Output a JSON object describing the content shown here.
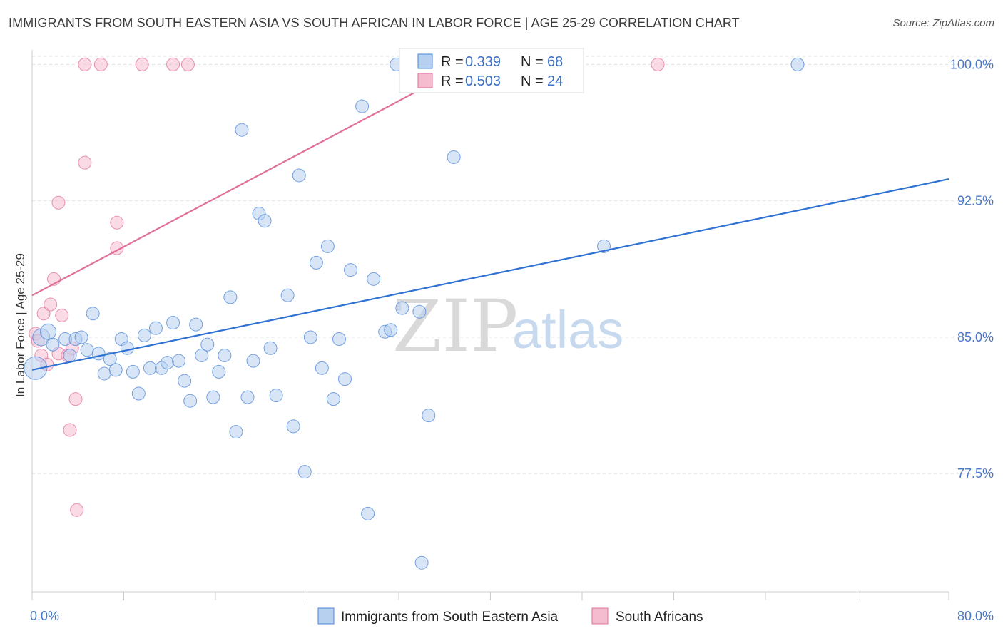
{
  "title": "IMMIGRANTS FROM SOUTH EASTERN ASIA VS SOUTH AFRICAN IN LABOR FORCE | AGE 25-29 CORRELATION CHART",
  "source": "Source: ZipAtlas.com",
  "watermark": {
    "zip": "ZIP",
    "atlas": "atlas"
  },
  "colors": {
    "blue": "#4a86d8",
    "blue_fill": "#b8d0f0",
    "pink": "#e0709a",
    "pink_fill": "#f5bcd0",
    "axis_text": "#4a78c8",
    "grid": "#e2e2e2"
  },
  "chart_data": {
    "type": "scatter",
    "xlabel": "",
    "ylabel": "In Labor Force | Age 25-29",
    "xlim": [
      0,
      80
    ],
    "ylim": [
      71,
      100.8
    ],
    "x_tick_labels": [
      "0.0%",
      "80.0%"
    ],
    "y_ticks": [
      77.5,
      85.0,
      92.5,
      100.0
    ],
    "y_tick_labels": [
      "77.5%",
      "85.0%",
      "92.5%",
      "100.0%"
    ],
    "grid": true,
    "legend_position": "top-center",
    "series": [
      {
        "name": "Immigrants from South Eastern Asia",
        "r_label": "R =",
        "r": "0.339",
        "n_label": "N =",
        "n": "68",
        "trend": {
          "x": [
            0,
            80
          ],
          "y": [
            83.2,
            93.7
          ]
        },
        "points": [
          {
            "x": 0.3,
            "y": 83.3,
            "s": 16
          },
          {
            "x": 0.8,
            "y": 85.0,
            "s": 12
          },
          {
            "x": 1.4,
            "y": 85.3,
            "s": 11
          },
          {
            "x": 1.8,
            "y": 84.6,
            "s": 9
          },
          {
            "x": 2.9,
            "y": 84.9,
            "s": 9
          },
          {
            "x": 3.3,
            "y": 84.0,
            "s": 9
          },
          {
            "x": 3.8,
            "y": 84.9,
            "s": 9
          },
          {
            "x": 4.3,
            "y": 85.0,
            "s": 9
          },
          {
            "x": 4.8,
            "y": 84.3,
            "s": 9
          },
          {
            "x": 5.3,
            "y": 86.3,
            "s": 9
          },
          {
            "x": 5.8,
            "y": 84.1,
            "s": 9
          },
          {
            "x": 6.3,
            "y": 83.0,
            "s": 9
          },
          {
            "x": 6.8,
            "y": 83.8,
            "s": 9
          },
          {
            "x": 7.3,
            "y": 83.2,
            "s": 9
          },
          {
            "x": 7.8,
            "y": 84.9,
            "s": 9
          },
          {
            "x": 8.3,
            "y": 84.4,
            "s": 9
          },
          {
            "x": 8.8,
            "y": 83.1,
            "s": 9
          },
          {
            "x": 9.3,
            "y": 81.9,
            "s": 9
          },
          {
            "x": 9.8,
            "y": 85.1,
            "s": 9
          },
          {
            "x": 10.3,
            "y": 83.3,
            "s": 9
          },
          {
            "x": 10.8,
            "y": 85.5,
            "s": 9
          },
          {
            "x": 11.3,
            "y": 83.3,
            "s": 9
          },
          {
            "x": 11.8,
            "y": 83.6,
            "s": 9
          },
          {
            "x": 12.3,
            "y": 85.8,
            "s": 9
          },
          {
            "x": 12.8,
            "y": 83.7,
            "s": 9
          },
          {
            "x": 13.3,
            "y": 82.6,
            "s": 9
          },
          {
            "x": 13.8,
            "y": 81.5,
            "s": 9
          },
          {
            "x": 14.3,
            "y": 85.7,
            "s": 9
          },
          {
            "x": 14.8,
            "y": 84.0,
            "s": 9
          },
          {
            "x": 15.3,
            "y": 84.6,
            "s": 9
          },
          {
            "x": 15.8,
            "y": 81.7,
            "s": 9
          },
          {
            "x": 16.3,
            "y": 83.1,
            "s": 9
          },
          {
            "x": 16.8,
            "y": 84.0,
            "s": 9
          },
          {
            "x": 17.3,
            "y": 87.2,
            "s": 9
          },
          {
            "x": 17.8,
            "y": 79.8,
            "s": 9
          },
          {
            "x": 18.3,
            "y": 96.4,
            "s": 9
          },
          {
            "x": 18.8,
            "y": 81.7,
            "s": 9
          },
          {
            "x": 19.3,
            "y": 83.7,
            "s": 9
          },
          {
            "x": 19.8,
            "y": 91.8,
            "s": 9
          },
          {
            "x": 20.3,
            "y": 91.4,
            "s": 9
          },
          {
            "x": 20.8,
            "y": 84.4,
            "s": 9
          },
          {
            "x": 21.3,
            "y": 81.8,
            "s": 9
          },
          {
            "x": 22.3,
            "y": 87.3,
            "s": 9
          },
          {
            "x": 22.8,
            "y": 80.1,
            "s": 9
          },
          {
            "x": 23.3,
            "y": 93.9,
            "s": 9
          },
          {
            "x": 23.8,
            "y": 77.6,
            "s": 9
          },
          {
            "x": 24.3,
            "y": 85.0,
            "s": 9
          },
          {
            "x": 24.8,
            "y": 89.1,
            "s": 9
          },
          {
            "x": 25.3,
            "y": 83.3,
            "s": 9
          },
          {
            "x": 25.8,
            "y": 90.0,
            "s": 9
          },
          {
            "x": 26.3,
            "y": 81.6,
            "s": 9
          },
          {
            "x": 26.8,
            "y": 84.9,
            "s": 9
          },
          {
            "x": 27.3,
            "y": 82.7,
            "s": 9
          },
          {
            "x": 27.8,
            "y": 88.7,
            "s": 9
          },
          {
            "x": 28.8,
            "y": 97.7,
            "s": 9
          },
          {
            "x": 29.3,
            "y": 75.3,
            "s": 9
          },
          {
            "x": 29.8,
            "y": 88.2,
            "s": 9
          },
          {
            "x": 30.8,
            "y": 85.3,
            "s": 9
          },
          {
            "x": 31.3,
            "y": 85.4,
            "s": 9
          },
          {
            "x": 31.8,
            "y": 100.0,
            "s": 9
          },
          {
            "x": 32.3,
            "y": 86.6,
            "s": 9
          },
          {
            "x": 33.8,
            "y": 86.4,
            "s": 9
          },
          {
            "x": 34.0,
            "y": 72.6,
            "s": 9
          },
          {
            "x": 34.6,
            "y": 80.7,
            "s": 9
          },
          {
            "x": 36.8,
            "y": 94.9,
            "s": 9
          },
          {
            "x": 49.9,
            "y": 90.0,
            "s": 9
          },
          {
            "x": 66.8,
            "y": 100.0,
            "s": 9
          }
        ]
      },
      {
        "name": "South Africans",
        "r_label": "R =",
        "r": "0.503",
        "n_label": "N =",
        "n": "24",
        "trend": {
          "x": [
            0,
            38
          ],
          "y": [
            87.3,
            100.0
          ]
        },
        "points": [
          {
            "x": 0.3,
            "y": 85.2,
            "s": 9
          },
          {
            "x": 0.5,
            "y": 84.8,
            "s": 9
          },
          {
            "x": 0.8,
            "y": 84.0,
            "s": 9
          },
          {
            "x": 1.0,
            "y": 86.3,
            "s": 9
          },
          {
            "x": 1.3,
            "y": 83.5,
            "s": 9
          },
          {
            "x": 1.6,
            "y": 86.8,
            "s": 9
          },
          {
            "x": 1.9,
            "y": 88.2,
            "s": 9
          },
          {
            "x": 2.3,
            "y": 84.1,
            "s": 9
          },
          {
            "x": 2.3,
            "y": 92.4,
            "s": 9
          },
          {
            "x": 2.6,
            "y": 86.2,
            "s": 9
          },
          {
            "x": 3.1,
            "y": 84.0,
            "s": 9
          },
          {
            "x": 3.3,
            "y": 79.9,
            "s": 9
          },
          {
            "x": 3.5,
            "y": 84.4,
            "s": 9
          },
          {
            "x": 3.8,
            "y": 81.6,
            "s": 9
          },
          {
            "x": 3.9,
            "y": 75.5,
            "s": 9
          },
          {
            "x": 4.6,
            "y": 94.6,
            "s": 9
          },
          {
            "x": 4.6,
            "y": 100.0,
            "s": 9
          },
          {
            "x": 6.0,
            "y": 100.0,
            "s": 9
          },
          {
            "x": 7.4,
            "y": 91.3,
            "s": 9
          },
          {
            "x": 7.4,
            "y": 89.9,
            "s": 9
          },
          {
            "x": 9.6,
            "y": 100.0,
            "s": 9
          },
          {
            "x": 12.3,
            "y": 100.0,
            "s": 9
          },
          {
            "x": 13.6,
            "y": 100.0,
            "s": 9
          },
          {
            "x": 54.6,
            "y": 100.0,
            "s": 9
          }
        ]
      }
    ]
  }
}
